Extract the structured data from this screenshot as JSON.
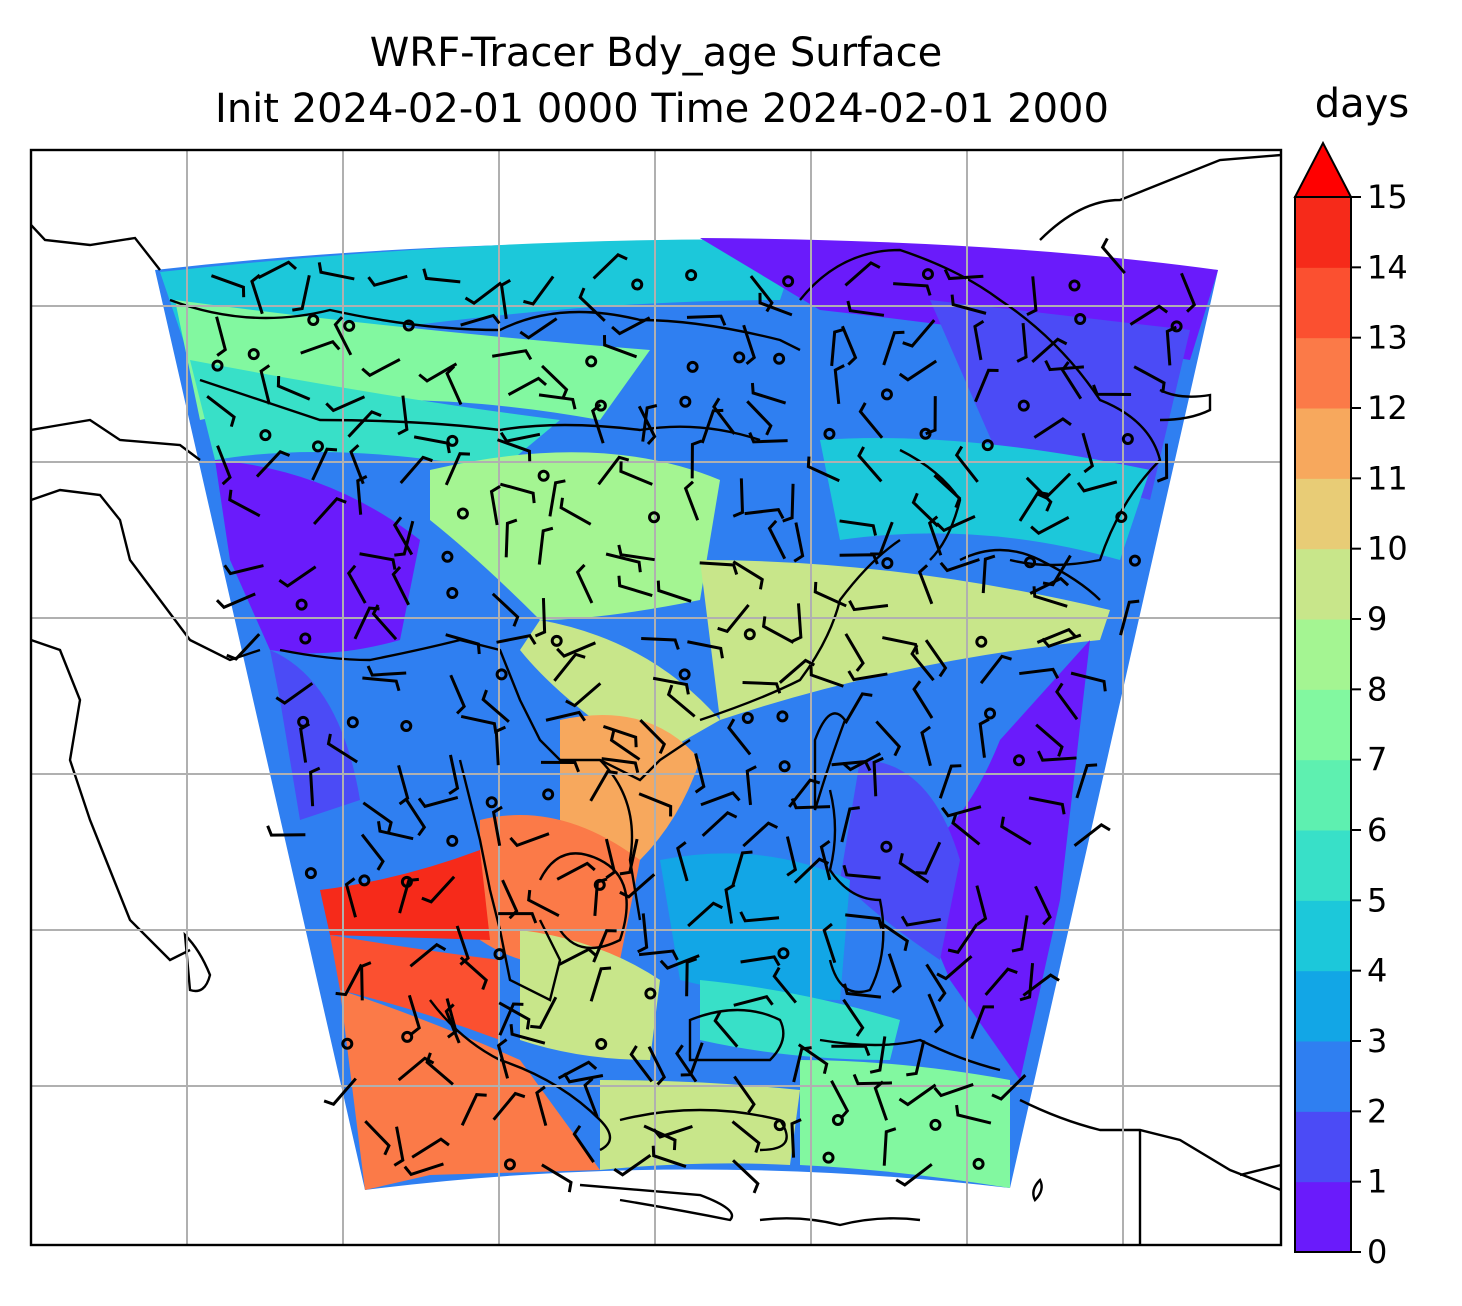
{
  "title": {
    "line1": "WRF-Tracer Bdy_age Surface",
    "line2": "Init 2024-02-01 0000 Time 2024-02-01 2000"
  },
  "colorbar": {
    "label": "days",
    "ticks": [
      "0",
      "1",
      "2",
      "3",
      "4",
      "5",
      "6",
      "7",
      "8",
      "9",
      "10",
      "11",
      "12",
      "13",
      "14",
      "15"
    ],
    "colors": [
      "#6a1bfb",
      "#4b4bf6",
      "#2f7ff1",
      "#12a6e6",
      "#1cc8da",
      "#38e0c8",
      "#5ef0b0",
      "#82f8a0",
      "#a4f592",
      "#c8e68a",
      "#e8cc76",
      "#f7a85d",
      "#fb7a48",
      "#fb5030",
      "#f62a1a"
    ],
    "extend_color": "#ff0000"
  },
  "map": {
    "gridlines": "on",
    "coastlines": "on",
    "field_name": "Bdy_age",
    "units": "days",
    "wind_barbs": "on"
  }
}
